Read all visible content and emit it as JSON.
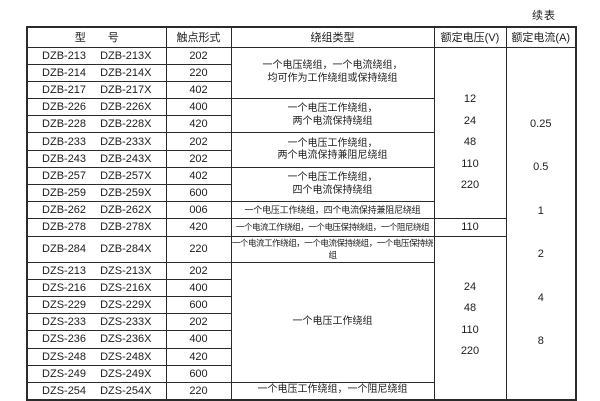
{
  "page": {
    "continued_label": "续表"
  },
  "table": {
    "headers": [
      "型　　号",
      "触点形式",
      "绕组类型",
      "额定电压(V)",
      "额定电流(A)"
    ],
    "rows": [
      {
        "model": "DZB-213",
        "model_x": "DZB-213X",
        "contact": "202"
      },
      {
        "model": "DZB-214",
        "model_x": "DZB-214X",
        "contact": "220"
      },
      {
        "model": "DZB-217",
        "model_x": "DZB-217X",
        "contact": "402"
      },
      {
        "model": "DZB-226",
        "model_x": "DZB-226X",
        "contact": "400"
      },
      {
        "model": "DZB-228",
        "model_x": "DZB-228X",
        "contact": "420"
      },
      {
        "model": "DZB-233",
        "model_x": "DZB-233X",
        "contact": "202"
      },
      {
        "model": "DZB-243",
        "model_x": "DZB-243X",
        "contact": "202"
      },
      {
        "model": "DZB-257",
        "model_x": "DZB-257X",
        "contact": "402"
      },
      {
        "model": "DZB-259",
        "model_x": "DZB-259X",
        "contact": "600"
      },
      {
        "model": "DZB-262",
        "model_x": "DZB-262X",
        "contact": "006"
      },
      {
        "model": "DZB-278",
        "model_x": "DZB-278X",
        "contact": "420"
      },
      {
        "model": "DZB-284",
        "model_x": "DZB-284X",
        "contact": "220"
      },
      {
        "model": "DZS-213",
        "model_x": "DZS-213X",
        "contact": "202"
      },
      {
        "model": "DZS-216",
        "model_x": "DZS-216X",
        "contact": "400"
      },
      {
        "model": "DZS-229",
        "model_x": "DZS-229X",
        "contact": "600"
      },
      {
        "model": "DZS-233",
        "model_x": "DZS-233X",
        "contact": "202"
      },
      {
        "model": "DZS-236",
        "model_x": "DZS-236X",
        "contact": "400"
      },
      {
        "model": "DZS-248",
        "model_x": "DZS-248X",
        "contact": "420"
      },
      {
        "model": "DZS-249",
        "model_x": "DZS-249X",
        "contact": "600"
      },
      {
        "model": "DZS-254",
        "model_x": "DZS-254X",
        "contact": "220"
      }
    ],
    "winding_groups": [
      {
        "start": 0,
        "span": 3,
        "lines": [
          "一个电压绕组，一个电流绕组，",
          "均可作为工作绕组或保持绕组"
        ]
      },
      {
        "start": 3,
        "span": 2,
        "lines": [
          "一个电压工作绕组，",
          "两个电流保持绕组"
        ]
      },
      {
        "start": 5,
        "span": 2,
        "lines": [
          "一个电压工作绕组，",
          "两个电流保持兼阻尼绕组"
        ]
      },
      {
        "start": 7,
        "span": 2,
        "lines": [
          "一个电压工作绕组，",
          "四个电流保持绕组"
        ]
      },
      {
        "start": 9,
        "span": 1,
        "lines": [
          "一个电压工作绕组，四个电流保持兼阻尼绕组"
        ]
      },
      {
        "start": 10,
        "span": 1,
        "lines": [
          "一个电流工作绕组，一个电压保持绕组，一个阻尼绕组"
        ]
      },
      {
        "start": 11,
        "span": 1,
        "lines": [
          "一个电流工作绕组，一个电流保持绕组，一个电压保持绕组"
        ]
      },
      {
        "start": 12,
        "span": 7,
        "lines": [
          "一个电压工作绕组"
        ]
      },
      {
        "start": 19,
        "span": 1,
        "lines": [
          "一个电压工作绕组，一个阻尼绕组"
        ]
      }
    ],
    "voltage_groups": [
      {
        "start": 0,
        "span": 10,
        "values": [
          "12",
          "24",
          "48",
          "110",
          "220"
        ]
      },
      {
        "start": 10,
        "span": 1,
        "values": [
          "110"
        ]
      },
      {
        "start": 11,
        "span": 9,
        "values": [
          "24",
          "48",
          "110",
          "220"
        ]
      }
    ],
    "current_groups": [
      {
        "start": 0,
        "span": 20,
        "values": [
          "0.25",
          "0.5",
          "1",
          "2",
          "4",
          "8"
        ]
      }
    ]
  }
}
